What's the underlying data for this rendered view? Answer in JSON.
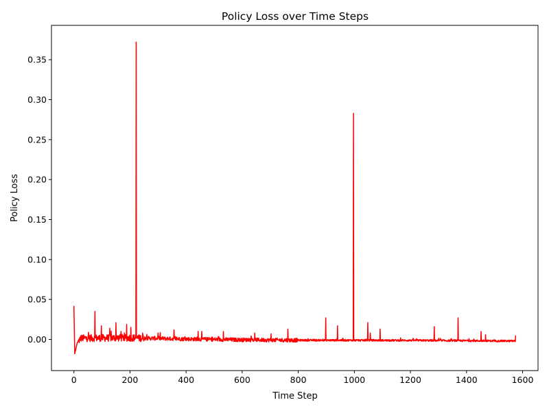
{
  "chart_data": {
    "type": "line",
    "title": "Policy Loss over Time Steps",
    "xlabel": "Time Step",
    "ylabel": "Policy Loss",
    "xlim": [
      -80,
      1655
    ],
    "ylim": [
      -0.039,
      0.393
    ],
    "xticks": [
      0,
      200,
      400,
      600,
      800,
      1000,
      1200,
      1400,
      1600
    ],
    "xtick_labels": [
      "0",
      "200",
      "400",
      "600",
      "800",
      "1000",
      "1200",
      "1400",
      "1600"
    ],
    "yticks": [
      0.0,
      0.05,
      0.1,
      0.15,
      0.2,
      0.25,
      0.3,
      0.35
    ],
    "ytick_labels": [
      "0.00",
      "0.05",
      "0.10",
      "0.15",
      "0.20",
      "0.25",
      "0.30",
      "0.35"
    ],
    "grid": false,
    "series": [
      {
        "name": "Policy Loss",
        "color": "#ff0000",
        "n_points": 1576,
        "x_start": 0,
        "x_end": 1575,
        "baseline": [
          [
            0,
            0.042
          ],
          [
            3,
            -0.018
          ],
          [
            12,
            -0.004
          ],
          [
            25,
            0.0015
          ],
          [
            200,
            0.002
          ],
          [
            400,
            0.0005
          ],
          [
            600,
            -0.0005
          ],
          [
            800,
            -0.001
          ],
          [
            1200,
            -0.0012
          ],
          [
            1574,
            -0.002
          ],
          [
            1575,
            0.005
          ]
        ],
        "spikes": [
          {
            "x": 75,
            "y": 0.035
          },
          {
            "x": 98,
            "y": 0.017
          },
          {
            "x": 128,
            "y": 0.014
          },
          {
            "x": 150,
            "y": 0.021
          },
          {
            "x": 168,
            "y": 0.01
          },
          {
            "x": 188,
            "y": 0.019
          },
          {
            "x": 203,
            "y": 0.015
          },
          {
            "x": 222,
            "y": 0.372
          },
          {
            "x": 245,
            "y": 0.008
          },
          {
            "x": 300,
            "y": 0.008
          },
          {
            "x": 357,
            "y": 0.012
          },
          {
            "x": 443,
            "y": 0.01
          },
          {
            "x": 456,
            "y": 0.01
          },
          {
            "x": 533,
            "y": 0.01
          },
          {
            "x": 645,
            "y": 0.008
          },
          {
            "x": 703,
            "y": 0.007
          },
          {
            "x": 763,
            "y": 0.013
          },
          {
            "x": 898,
            "y": 0.027
          },
          {
            "x": 940,
            "y": 0.017
          },
          {
            "x": 997,
            "y": 0.283
          },
          {
            "x": 1048,
            "y": 0.021
          },
          {
            "x": 1057,
            "y": 0.008
          },
          {
            "x": 1092,
            "y": 0.013
          },
          {
            "x": 1285,
            "y": 0.016
          },
          {
            "x": 1370,
            "y": 0.027
          },
          {
            "x": 1452,
            "y": 0.01
          },
          {
            "x": 1468,
            "y": 0.006
          }
        ]
      }
    ]
  }
}
